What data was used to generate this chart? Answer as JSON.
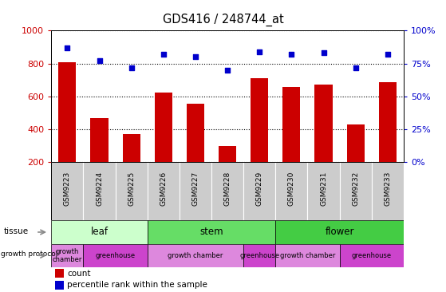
{
  "title": "GDS416 / 248744_at",
  "samples": [
    "GSM9223",
    "GSM9224",
    "GSM9225",
    "GSM9226",
    "GSM9227",
    "GSM9228",
    "GSM9229",
    "GSM9230",
    "GSM9231",
    "GSM9232",
    "GSM9233"
  ],
  "counts": [
    810,
    470,
    370,
    625,
    555,
    300,
    710,
    655,
    670,
    430,
    685
  ],
  "percentiles": [
    87,
    77,
    72,
    82,
    80,
    70,
    84,
    82,
    83,
    72,
    82
  ],
  "ylim_left": [
    200,
    1000
  ],
  "ylim_right": [
    0,
    100
  ],
  "yticks_left": [
    200,
    400,
    600,
    800,
    1000
  ],
  "yticks_right": [
    0,
    25,
    50,
    75,
    100
  ],
  "bar_color": "#cc0000",
  "dot_color": "#0000cc",
  "tissue_groups": [
    {
      "label": "leaf",
      "start": 0,
      "end": 2,
      "color": "#ccffcc"
    },
    {
      "label": "stem",
      "start": 3,
      "end": 6,
      "color": "#66dd66"
    },
    {
      "label": "flower",
      "start": 7,
      "end": 10,
      "color": "#44cc44"
    }
  ],
  "growth_groups": [
    {
      "label": "growth\nchamber",
      "start": 0,
      "end": 0,
      "color": "#dd88dd"
    },
    {
      "label": "greenhouse",
      "start": 1,
      "end": 2,
      "color": "#cc44cc"
    },
    {
      "label": "growth chamber",
      "start": 3,
      "end": 5,
      "color": "#dd88dd"
    },
    {
      "label": "greenhouse",
      "start": 6,
      "end": 6,
      "color": "#cc44cc"
    },
    {
      "label": "growth chamber",
      "start": 7,
      "end": 8,
      "color": "#dd88dd"
    },
    {
      "label": "greenhouse",
      "start": 9,
      "end": 10,
      "color": "#cc44cc"
    }
  ],
  "bar_color_legend": "#cc0000",
  "dot_color_legend": "#0000cc",
  "left_tick_color": "#cc0000",
  "right_tick_color": "#0000cc",
  "fig_width": 5.59,
  "fig_height": 3.66,
  "dpi": 100
}
